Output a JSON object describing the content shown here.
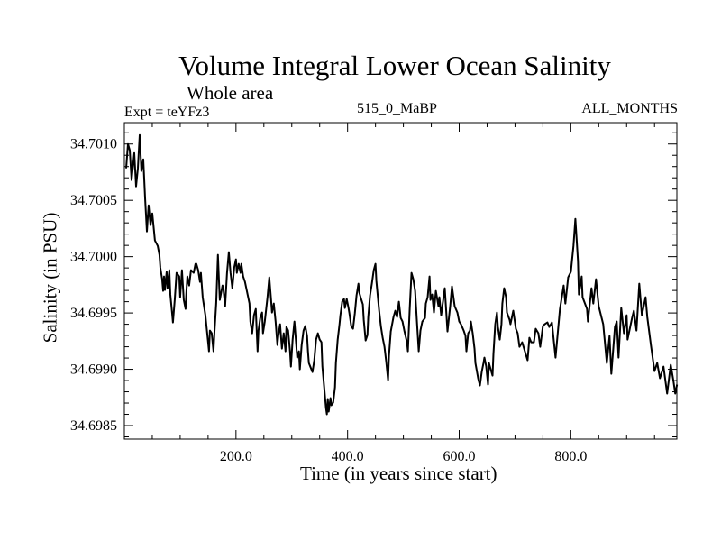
{
  "chart_data": {
    "type": "line",
    "title": "Volume Integral Lower Ocean Salinity",
    "subtitle": "Whole area",
    "annotations": {
      "left": "Expt = teYFz3",
      "center": "515_0_MaBP",
      "right": "ALL_MONTHS"
    },
    "xlabel": "Time (in years since start)",
    "ylabel": "Salinity (in PSU)",
    "xlim": [
      0,
      990
    ],
    "ylim": [
      34.69838,
      34.70119
    ],
    "xticks": [
      {
        "value": 200,
        "label": "200.0"
      },
      {
        "value": 400,
        "label": "400.0"
      },
      {
        "value": 600,
        "label": "600.0"
      },
      {
        "value": 800,
        "label": "800.0"
      }
    ],
    "xminor_step": 50,
    "yticks": [
      {
        "value": 34.6985,
        "label": "34.6985"
      },
      {
        "value": 34.699,
        "label": "34.6990"
      },
      {
        "value": 34.6995,
        "label": "34.6995"
      },
      {
        "value": 34.7,
        "label": "34.7000"
      },
      {
        "value": 34.7005,
        "label": "34.7005"
      },
      {
        "value": 34.701,
        "label": "34.7010"
      }
    ],
    "yminor_step": 0.0001,
    "grid": false,
    "series": [
      {
        "name": "salinity",
        "color": "#000000",
        "x": [
          3.2,
          6.5,
          9.7,
          12.9,
          17.7,
          21.0,
          24.2,
          27.4,
          30.6,
          33.9,
          37.1,
          40.3,
          43.5,
          46.8,
          50.0,
          54.8,
          59.7,
          62.9,
          64.5,
          67.7,
          69.4,
          71.0,
          72.6,
          75.8,
          77.4,
          80.6,
          82.3,
          85.5,
          87.1,
          90.3,
          93.5,
          98.4,
          100.0,
          103.2,
          106.5,
          109.7,
          111.3,
          112.9,
          116.1,
          119.4,
          124.2,
          127.4,
          129.0,
          132.3,
          135.5,
          137.1,
          140.3,
          145.2,
          148.4,
          151.6,
          153.2,
          156.5,
          159.7,
          161.3,
          164.5,
          167.7,
          169.4,
          171.0,
          175.8,
          177.4,
          180.6,
          183.9,
          187.1,
          190.3,
          193.5,
          196.8,
          200.0,
          201.6,
          204.8,
          208.1,
          209.7,
          212.9,
          216.1,
          219.4,
          224.2,
          225.8,
          229.0,
          232.3,
          235.5,
          238.7,
          240.3,
          243.5,
          246.8,
          248.4,
          251.6,
          256.5,
          259.7,
          262.9,
          264.5,
          267.7,
          271.0,
          274.2,
          275.8,
          279.0,
          282.3,
          285.5,
          288.7,
          290.3,
          293.5,
          296.8,
          298.4,
          301.6,
          304.8,
          309.7,
          312.9,
          314.5,
          317.7,
          321.0,
          324.2,
          327.4,
          329.0,
          330.6,
          333.9,
          337.1,
          340.3,
          343.5,
          346.8,
          350.0,
          353.2,
          354.8,
          358.1,
          361.3,
          362.9,
          364.5,
          366.1,
          369.4,
          371.0,
          374.2,
          377.4,
          379.0,
          382.3,
          385.5,
          387.1,
          390.3,
          393.5,
          395.2,
          398.4,
          401.6,
          403.2,
          406.5,
          409.7,
          412.9,
          416.1,
          419.4,
          421.0,
          424.2,
          427.4,
          429.0,
          432.3,
          435.5,
          437.1,
          440.3,
          443.5,
          446.8,
          450.0,
          451.6,
          456.5,
          459.7,
          462.9,
          466.1,
          469.4,
          472.6,
          474.2,
          477.4,
          482.3,
          485.5,
          488.7,
          491.9,
          495.2,
          498.4,
          501.6,
          506.5,
          508.1,
          511.3,
          514.5,
          517.7,
          521.0,
          524.2,
          527.4,
          530.6,
          533.9,
          538.7,
          540.3,
          543.5,
          546.8,
          548.4,
          551.6,
          554.8,
          558.1,
          562.9,
          564.5,
          567.7,
          574.2,
          579.0,
          583.9,
          587.1,
          591.9,
          596.8,
          600.0,
          603.2,
          608.1,
          611.3,
          612.9,
          616.1,
          619.4,
          621.0,
          624.2,
          627.4,
          629.0,
          633.9,
          637.1,
          640.3,
          643.5,
          645.2,
          648.4,
          651.6,
          653.2,
          656.5,
          659.7,
          661.3,
          664.5,
          667.7,
          669.4,
          672.6,
          675.8,
          677.4,
          680.6,
          683.9,
          685.5,
          690.3,
          691.9,
          696.8,
          701.6,
          704.8,
          708.1,
          712.9,
          717.7,
          722.6,
          725.8,
          729.0,
          733.9,
          737.1,
          741.9,
          745.2,
          750.0,
          753.2,
          758.1,
          761.3,
          766.1,
          772.6,
          780.6,
          787.1,
          790.3,
          795.2,
          800.0,
          804.8,
          808.1,
          812.9,
          814.5,
          819.4,
          821.0,
          829.0,
          830.6,
          837.1,
          840.3,
          845.2,
          850.0,
          858.1,
          864.5,
          869.4,
          872.6,
          879.0,
          882.3,
          885.5,
          890.3,
          895.2,
          900.0,
          901.6,
          909.7,
          912.9,
          917.7,
          922.6,
          927.4,
          933.9,
          937.1,
          943.5,
          950.0,
          954.8,
          959.7,
          966.1,
          972.6,
          979.0,
          983.9,
          987.1,
          990.3
        ],
        "y": [
          34.700784,
          34.701,
          34.700944,
          34.70068,
          34.70092,
          34.700624,
          34.700784,
          34.70108,
          34.70076,
          34.700864,
          34.70052,
          34.700224,
          34.700456,
          34.70028,
          34.700384,
          34.700144,
          34.700096,
          34.700016,
          34.699904,
          34.6998,
          34.699696,
          34.699824,
          34.699704,
          34.699864,
          34.69972,
          34.69988,
          34.699664,
          34.699504,
          34.699416,
          34.699616,
          34.699856,
          34.699824,
          34.69964,
          34.69988,
          34.699616,
          34.699536,
          34.699696,
          34.699824,
          34.699744,
          34.69988,
          34.699856,
          34.699936,
          34.699936,
          34.69988,
          34.699776,
          34.699856,
          34.69964,
          34.69948,
          34.69932,
          34.69916,
          34.699344,
          34.69932,
          34.69916,
          34.69932,
          34.699584,
          34.700016,
          34.6998,
          34.699616,
          34.699744,
          34.69972,
          34.69956,
          34.699856,
          34.70004,
          34.699856,
          34.69972,
          34.699904,
          34.699976,
          34.699856,
          34.699936,
          34.699856,
          34.699936,
          34.699824,
          34.699776,
          34.699696,
          34.699584,
          34.699424,
          34.69932,
          34.69948,
          34.699536,
          34.69916,
          34.699344,
          34.699456,
          34.699504,
          34.69932,
          34.699424,
          34.69964,
          34.699816,
          34.699616,
          34.699504,
          34.699584,
          34.699424,
          34.699216,
          34.699296,
          34.6994,
          34.699184,
          34.69932,
          34.69916,
          34.699376,
          34.699344,
          34.69916,
          34.699024,
          34.699264,
          34.699424,
          34.699104,
          34.69916,
          34.699,
          34.699216,
          34.699344,
          34.699384,
          34.699296,
          34.69916,
          34.699056,
          34.699016,
          34.698976,
          34.69908,
          34.699264,
          34.69932,
          34.699264,
          34.69924,
          34.699024,
          34.69884,
          34.698656,
          34.6986,
          34.698736,
          34.698624,
          34.698744,
          34.69868,
          34.698704,
          34.69884,
          34.699056,
          34.699264,
          34.6994,
          34.69948,
          34.6996,
          34.699624,
          34.699544,
          34.699624,
          34.699544,
          34.699496,
          34.699384,
          34.69936,
          34.699496,
          34.699656,
          34.69976,
          34.69968,
          34.699624,
          34.699576,
          34.69944,
          34.699256,
          34.699304,
          34.699464,
          34.699656,
          34.69976,
          34.69988,
          34.699936,
          34.699784,
          34.69952,
          34.699384,
          34.69928,
          34.6992,
          34.699064,
          34.698904,
          34.69912,
          34.699336,
          34.699464,
          34.69952,
          34.699464,
          34.6996,
          34.699456,
          34.699424,
          34.699344,
          34.69924,
          34.69916,
          34.699536,
          34.699856,
          34.6998,
          34.699696,
          34.699424,
          34.69916,
          34.699344,
          34.699424,
          34.699456,
          34.699584,
          34.69964,
          34.699824,
          34.699616,
          34.699664,
          34.699504,
          34.699696,
          34.69956,
          34.69964,
          34.69948,
          34.69972,
          34.699336,
          34.69956,
          34.699736,
          34.69956,
          34.699504,
          34.699424,
          34.6994,
          34.699344,
          34.699296,
          34.69916,
          34.69932,
          34.699344,
          34.699424,
          34.69932,
          34.699184,
          34.699056,
          34.69892,
          34.698856,
          34.698976,
          34.699056,
          34.699104,
          34.699024,
          34.698864,
          34.699056,
          34.699,
          34.698944,
          34.699136,
          34.6994,
          34.699504,
          34.699376,
          34.699264,
          34.6994,
          34.699584,
          34.69972,
          34.69964,
          34.699504,
          34.69944,
          34.6994,
          34.69952,
          34.69936,
          34.69932,
          34.6992,
          34.69924,
          34.69916,
          34.69908,
          34.69928,
          34.69924,
          34.69924,
          34.69936,
          34.69932,
          34.6992,
          34.699384,
          34.6994,
          34.699416,
          34.699376,
          34.699416,
          34.699104,
          34.699536,
          34.699744,
          34.699584,
          34.699816,
          34.699864,
          34.700096,
          34.700336,
          34.69996,
          34.699664,
          34.699824,
          34.69964,
          34.699536,
          34.699424,
          34.69972,
          34.699584,
          34.6998,
          34.69956,
          34.6994,
          34.699056,
          34.699296,
          34.69896,
          34.699376,
          34.699424,
          34.699104,
          34.699544,
          34.69932,
          34.69948,
          34.699264,
          34.699456,
          34.69952,
          34.699344,
          34.69976,
          34.69948,
          34.69964,
          34.699464,
          34.699216,
          34.698984,
          34.699056,
          34.69892,
          34.699024,
          34.698784,
          34.69904,
          34.698896,
          34.698784,
          34.698864
        ]
      }
    ]
  }
}
